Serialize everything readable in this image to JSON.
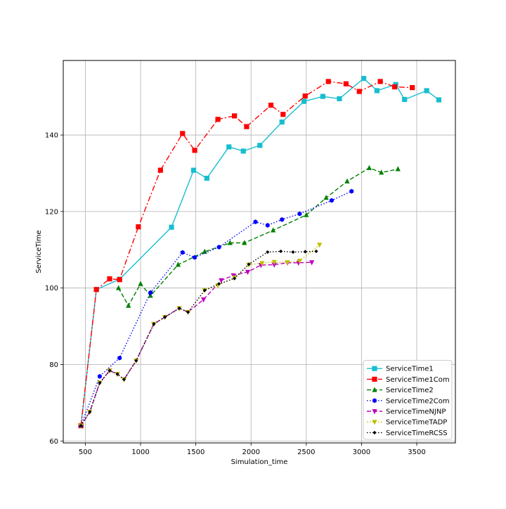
{
  "chart_data": {
    "type": "line",
    "xlabel": "Simulation_time",
    "ylabel": "ServiceTime",
    "xlim": [
      300,
      3850
    ],
    "ylim": [
      59.5,
      159.5
    ],
    "xticks": [
      500,
      1000,
      1500,
      2000,
      2500,
      3000,
      3500
    ],
    "yticks": [
      60,
      80,
      100,
      120,
      140
    ],
    "grid": true,
    "legend_position": "lower right",
    "series": [
      {
        "name": "ServiceTime1",
        "color": "#17becf",
        "linestyle": "solid",
        "marker": "square",
        "x": [
          460,
          600,
          810,
          1280,
          1480,
          1600,
          1800,
          1930,
          2080,
          2280,
          2480,
          2650,
          2800,
          3020,
          3140,
          3310,
          3390,
          3590,
          3700
        ],
        "y": [
          64,
          99.6,
          102.3,
          115.9,
          130.8,
          128.7,
          136.9,
          135.8,
          137.3,
          143.4,
          148.8,
          150.1,
          149.5,
          154.8,
          151.6,
          153.2,
          149.3,
          151.6,
          149.2
        ]
      },
      {
        "name": "ServiceTime1Com",
        "color": "#ff0000",
        "linestyle": "dashdot",
        "marker": "square",
        "x": [
          460,
          600,
          720,
          810,
          980,
          1180,
          1380,
          1490,
          1700,
          1850,
          1960,
          2180,
          2290,
          2490,
          2700,
          2860,
          2980,
          3170,
          3300,
          3460
        ],
        "y": [
          64,
          99.6,
          102.4,
          102.2,
          116.0,
          130.8,
          140.4,
          136.0,
          144.1,
          145.0,
          142.2,
          147.8,
          145.4,
          150.2,
          154.0,
          153.4,
          151.4,
          154.0,
          152.6,
          152.4
        ]
      },
      {
        "name": "ServiceTime2",
        "color": "#008000",
        "linestyle": "dashed",
        "marker": "triangle-up",
        "x": [
          800,
          890,
          1000,
          1090,
          1340,
          1580,
          1810,
          1940,
          2200,
          2500,
          2680,
          2870,
          3070,
          3180,
          3330
        ],
        "y": [
          100,
          95.4,
          101.1,
          98.0,
          106.1,
          109.5,
          111.8,
          111.8,
          115.1,
          119.1,
          123.6,
          127.9,
          131.4,
          130.2,
          131.1
        ]
      },
      {
        "name": "ServiceTime2Com",
        "color": "#0000ff",
        "linestyle": "dotted",
        "marker": "hexagon",
        "x": [
          460,
          630,
          810,
          1090,
          1380,
          1490,
          1710,
          2040,
          2150,
          2280,
          2440,
          2730,
          2910
        ],
        "y": [
          64,
          76.9,
          81.7,
          98.8,
          109.3,
          108.0,
          110.7,
          117.3,
          116.4,
          117.9,
          119.4,
          122.9,
          125.3
        ]
      },
      {
        "name": "ServiceTimeNJNP",
        "color": "#bf00bf",
        "linestyle": "dashed",
        "marker": "triangle-down",
        "x": [
          460,
          540,
          630,
          720,
          790,
          850,
          960,
          1120,
          1220,
          1350,
          1430,
          1570,
          1730,
          1840,
          1970,
          2090,
          2210,
          2330,
          2430,
          2550
        ],
        "y": [
          64,
          67.6,
          75.2,
          78.4,
          77.5,
          76.1,
          81.0,
          90.6,
          92.4,
          94.7,
          93.7,
          97.0,
          102.0,
          103.3,
          104.2,
          106.0,
          106.1,
          106.6,
          106.6,
          106.7
        ]
      },
      {
        "name": "ServiceTimeTADP",
        "color": "#bfbf00",
        "linestyle": "dotted",
        "marker": "triangle-down",
        "x": [
          460,
          540,
          630,
          720,
          790,
          850,
          960,
          1120,
          1220,
          1350,
          1430,
          1580,
          1700,
          1850,
          1980,
          2100,
          2210,
          2330,
          2440,
          2620
        ],
        "y": [
          64,
          67.6,
          75.2,
          78.4,
          77.5,
          76.1,
          81.0,
          90.6,
          92.4,
          94.7,
          93.7,
          99.4,
          100.7,
          102.7,
          106.1,
          106.5,
          106.8,
          106.7,
          107.1,
          111.3
        ]
      },
      {
        "name": "ServiceTimeRCSS",
        "color": "#000000",
        "linestyle": "dotted",
        "marker": "diamond",
        "x": [
          460,
          540,
          630,
          720,
          790,
          850,
          960,
          1120,
          1220,
          1350,
          1430,
          1580,
          1710,
          1850,
          1980,
          2150,
          2270,
          2380,
          2490,
          2590
        ],
        "y": [
          64,
          67.6,
          75.2,
          78.4,
          77.5,
          76.1,
          81.0,
          90.6,
          92.4,
          94.7,
          93.7,
          99.4,
          101.1,
          102.5,
          106.2,
          109.4,
          109.6,
          109.4,
          109.5,
          109.6
        ]
      }
    ]
  }
}
